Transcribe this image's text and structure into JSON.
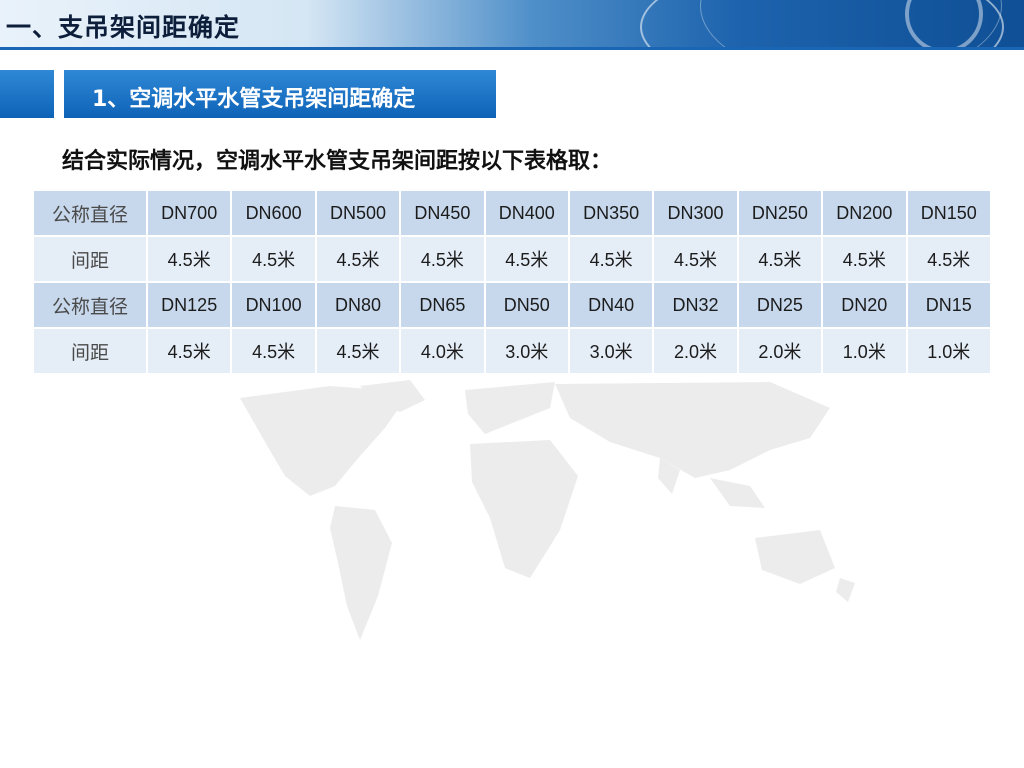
{
  "header": {
    "title": "一、支吊架间距确定"
  },
  "section": {
    "title": "1、空调水平水管支吊架间距确定"
  },
  "intro": {
    "text": "结合实际情况，空调水平水管支吊架间距按以下表格取："
  },
  "table": {
    "rows": [
      {
        "type": "head",
        "label": "公称直径",
        "cells": [
          "DN700",
          "DN600",
          "DN500",
          "DN450",
          "DN400",
          "DN350",
          "DN300",
          "DN250",
          "DN200",
          "DN150"
        ]
      },
      {
        "type": "val",
        "label": "间距",
        "cells": [
          "4.5米",
          "4.5米",
          "4.5米",
          "4.5米",
          "4.5米",
          "4.5米",
          "4.5米",
          "4.5米",
          "4.5米",
          "4.5米"
        ]
      },
      {
        "type": "head",
        "label": "公称直径",
        "cells": [
          "DN125",
          "DN100",
          "DN80",
          "DN65",
          "DN50",
          "DN40",
          "DN32",
          "DN25",
          "DN20",
          "DN15"
        ]
      },
      {
        "type": "val",
        "label": "间距",
        "cells": [
          "4.5米",
          "4.5米",
          "4.5米",
          "4.0米",
          "3.0米",
          "3.0米",
          "2.0米",
          "2.0米",
          "1.0米",
          "1.0米"
        ]
      }
    ]
  },
  "colors": {
    "accent": "#0e63b7",
    "table_head": "#c7d8ec",
    "table_value": "#e5edf7",
    "map": "#ececec"
  }
}
